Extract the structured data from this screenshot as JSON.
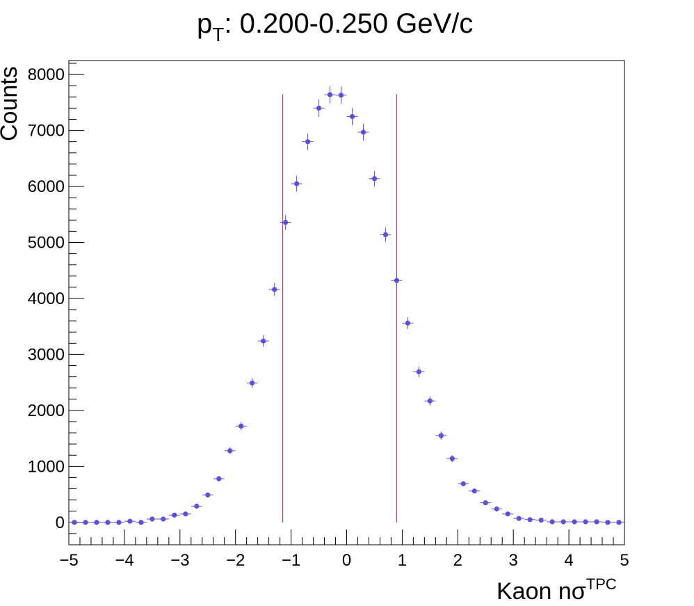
{
  "chart_data": {
    "type": "scatter",
    "title_main": "p",
    "title_sub": "T",
    "title_rest": ": 0.200-0.250 GeV/c",
    "xlabel_main": "Kaon nσ",
    "xlabel_sup": "TPC",
    "ylabel": "Counts",
    "xlim": [
      -5,
      5
    ],
    "ylim": [
      -400,
      8250
    ],
    "xticks": [
      "−5",
      "−4",
      "−3",
      "−2",
      "−1",
      "0",
      "1",
      "2",
      "3",
      "4",
      "5"
    ],
    "yticks": [
      "0",
      "1000",
      "2000",
      "3000",
      "4000",
      "5000",
      "6000",
      "7000",
      "8000"
    ],
    "grid": false,
    "marker_color": "#5c4fd8",
    "line_color": "#a05070",
    "cut_lines": [
      -1.15,
      0.9
    ],
    "cut_line_ymax": 7650,
    "bin_width": 0.2,
    "x": [
      -4.9,
      -4.7,
      -4.5,
      -4.3,
      -4.1,
      -3.9,
      -3.7,
      -3.5,
      -3.3,
      -3.1,
      -2.9,
      -2.7,
      -2.5,
      -2.3,
      -2.1,
      -1.9,
      -1.7,
      -1.5,
      -1.3,
      -1.1,
      -0.9,
      -0.7,
      -0.5,
      -0.3,
      -0.1,
      0.1,
      0.3,
      0.5,
      0.7,
      0.9,
      1.1,
      1.3,
      1.5,
      1.7,
      1.9,
      2.1,
      2.3,
      2.5,
      2.7,
      2.9,
      3.1,
      3.3,
      3.5,
      3.7,
      3.9,
      4.1,
      4.3,
      4.5,
      4.7,
      4.9
    ],
    "y": [
      0,
      0,
      0,
      0,
      0,
      20,
      0,
      60,
      60,
      130,
      150,
      290,
      490,
      780,
      1280,
      1720,
      2490,
      3240,
      4160,
      5360,
      6050,
      6800,
      7400,
      7640,
      7630,
      7250,
      6970,
      6140,
      5140,
      4320,
      3560,
      2690,
      2170,
      1550,
      1140,
      690,
      560,
      350,
      240,
      150,
      70,
      50,
      40,
      10,
      10,
      10,
      10,
      10,
      0,
      0
    ]
  }
}
